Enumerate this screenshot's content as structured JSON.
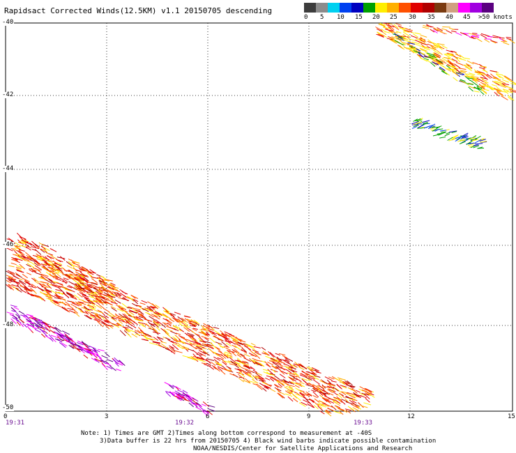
{
  "title": "Rapidsact Corrected Winds(12.5KM) v1.1 20150705 descending",
  "legend": {
    "colors": [
      "#3c3c3c",
      "#8c8c8c",
      "#00d0f0",
      "#0040f0",
      "#0000c0",
      "#00a000",
      "#ffee00",
      "#ffb000",
      "#ff5000",
      "#e00000",
      "#b00000",
      "#7a3a10",
      "#d0a080",
      "#ff00ff",
      "#a000e0",
      "#5a0080"
    ],
    "labels": [
      "0",
      "5",
      "10",
      "15",
      "20",
      "25",
      "30",
      "35",
      "40",
      "45",
      ">50 knots"
    ]
  },
  "axes": {
    "lon_ticks": [
      "0",
      "3",
      "6",
      "9",
      "12",
      "15"
    ],
    "lat_ticks": [
      "-40",
      "-42",
      "-44",
      "-46",
      "-48",
      "-50"
    ],
    "times": [
      "19:31",
      "19:32",
      "19:33"
    ]
  },
  "notes": {
    "line1": "Note: 1) Times are GMT 2)Times along bottom correspond to measurement at -40S",
    "line2": "3)Data buffer is 22 hrs from 20150705 4) Black wind barbs indicate possible contamination",
    "line3": "NOAA/NESDIS/Center for Satellite Applications and Research"
  }
}
